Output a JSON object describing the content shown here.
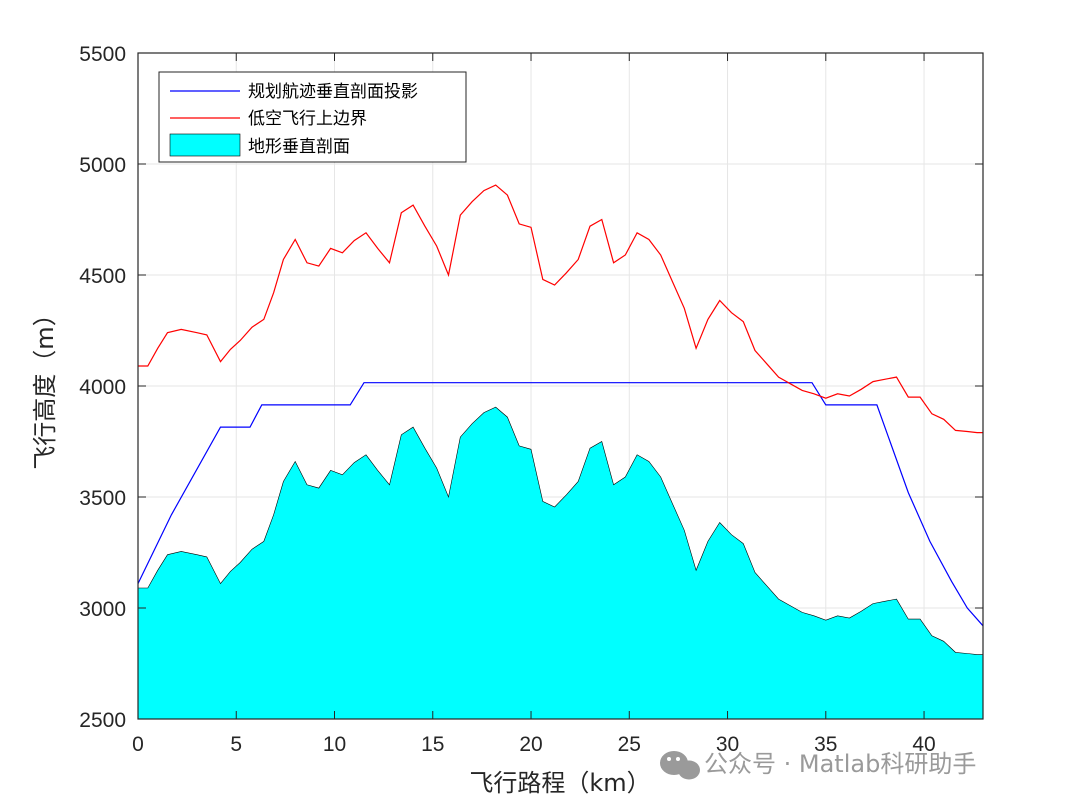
{
  "chart_data": {
    "type": "area",
    "xlabel": "飞行路程（km）",
    "ylabel": "飞行高度（m）",
    "xlim": [
      0,
      43
    ],
    "ylim": [
      2500,
      5500
    ],
    "xticks": [
      0,
      5,
      10,
      15,
      20,
      25,
      30,
      35,
      40
    ],
    "yticks": [
      2500,
      3000,
      3500,
      4000,
      4500,
      5000,
      5500
    ],
    "grid": true,
    "legend_position": "top-left",
    "series": [
      {
        "name": "规划航迹垂直剖面投影",
        "kind": "line",
        "color": "#0000ff",
        "x": [
          0,
          1.7,
          4.2,
          5.7,
          6.3,
          10.8,
          11.5,
          34.3,
          35.0,
          37.6,
          39.2,
          40.3,
          41.4,
          42.2,
          43.0
        ],
        "y": [
          3110,
          3420,
          3815,
          3815,
          3915,
          3915,
          4015,
          4015,
          3915,
          3915,
          3520,
          3300,
          3120,
          3000,
          2920
        ]
      },
      {
        "name": "低空飞行上边界",
        "kind": "line",
        "color": "#ff0000",
        "x": [
          0,
          0.5,
          1.0,
          1.5,
          2.2,
          3.0,
          3.5,
          4.2,
          4.7,
          5.2,
          5.8,
          6.4,
          6.9,
          7.4,
          8.0,
          8.6,
          9.2,
          9.8,
          10.4,
          11.0,
          11.6,
          12.2,
          12.8,
          13.4,
          14.0,
          14.6,
          15.2,
          15.8,
          16.4,
          17.0,
          17.6,
          18.2,
          18.8,
          19.4,
          20.0,
          20.6,
          21.2,
          21.8,
          22.4,
          23.0,
          23.6,
          24.2,
          24.8,
          25.4,
          26.0,
          26.6,
          27.2,
          27.8,
          28.4,
          29.0,
          29.6,
          30.2,
          30.8,
          31.4,
          32.0,
          32.6,
          33.2,
          33.8,
          34.4,
          35.0,
          35.6,
          36.2,
          36.8,
          37.4,
          38.0,
          38.6,
          39.2,
          39.8,
          40.4,
          41.0,
          41.6,
          42.2,
          42.7,
          43.0
        ],
        "y": [
          4090,
          4090,
          4170,
          4240,
          4255,
          4240,
          4230,
          4110,
          4165,
          4205,
          4265,
          4300,
          4420,
          4570,
          4660,
          4555,
          4540,
          4620,
          4600,
          4655,
          4690,
          4620,
          4555,
          4780,
          4815,
          4720,
          4630,
          4500,
          4770,
          4830,
          4880,
          4905,
          4860,
          4730,
          4715,
          4480,
          4455,
          4510,
          4570,
          4720,
          4750,
          4555,
          4590,
          4690,
          4660,
          4590,
          4470,
          4350,
          4170,
          4300,
          4385,
          4330,
          4290,
          4160,
          4100,
          4040,
          4010,
          3980,
          3965,
          3945,
          3965,
          3955,
          3985,
          4020,
          4030,
          4040,
          3950,
          3950,
          3875,
          3850,
          3800,
          3795,
          3790,
          3790
        ]
      },
      {
        "name": "地形垂直剖面",
        "kind": "area",
        "color": "#00ffff",
        "x": [
          0,
          0.5,
          1.0,
          1.5,
          2.2,
          3.0,
          3.5,
          4.2,
          4.7,
          5.2,
          5.8,
          6.4,
          6.9,
          7.4,
          8.0,
          8.6,
          9.2,
          9.8,
          10.4,
          11.0,
          11.6,
          12.2,
          12.8,
          13.4,
          14.0,
          14.6,
          15.2,
          15.8,
          16.4,
          17.0,
          17.6,
          18.2,
          18.8,
          19.4,
          20.0,
          20.6,
          21.2,
          21.8,
          22.4,
          23.0,
          23.6,
          24.2,
          24.8,
          25.4,
          26.0,
          26.6,
          27.2,
          27.8,
          28.4,
          29.0,
          29.6,
          30.2,
          30.8,
          31.4,
          32.0,
          32.6,
          33.2,
          33.8,
          34.4,
          35.0,
          35.6,
          36.2,
          36.8,
          37.4,
          38.0,
          38.6,
          39.2,
          39.8,
          40.4,
          41.0,
          41.6,
          42.2,
          42.7,
          43.0
        ],
        "y": [
          3090,
          3090,
          3170,
          3240,
          3255,
          3240,
          3230,
          3110,
          3165,
          3205,
          3265,
          3300,
          3420,
          3570,
          3660,
          3555,
          3540,
          3620,
          3600,
          3655,
          3690,
          3620,
          3555,
          3780,
          3815,
          3720,
          3630,
          3500,
          3770,
          3830,
          3880,
          3905,
          3860,
          3730,
          3715,
          3480,
          3455,
          3510,
          3570,
          3720,
          3750,
          3555,
          3590,
          3690,
          3660,
          3590,
          3470,
          3350,
          3170,
          3300,
          3385,
          3330,
          3290,
          3160,
          3100,
          3040,
          3010,
          2980,
          2965,
          2945,
          2965,
          2955,
          2985,
          3020,
          3030,
          3040,
          2950,
          2950,
          2875,
          2850,
          2800,
          2795,
          2790,
          2790
        ]
      }
    ]
  },
  "watermark": {
    "text": "公众号 · Matlab科研助手",
    "icon": "wechat-icon",
    "icon_color": "#9a9a9a"
  }
}
